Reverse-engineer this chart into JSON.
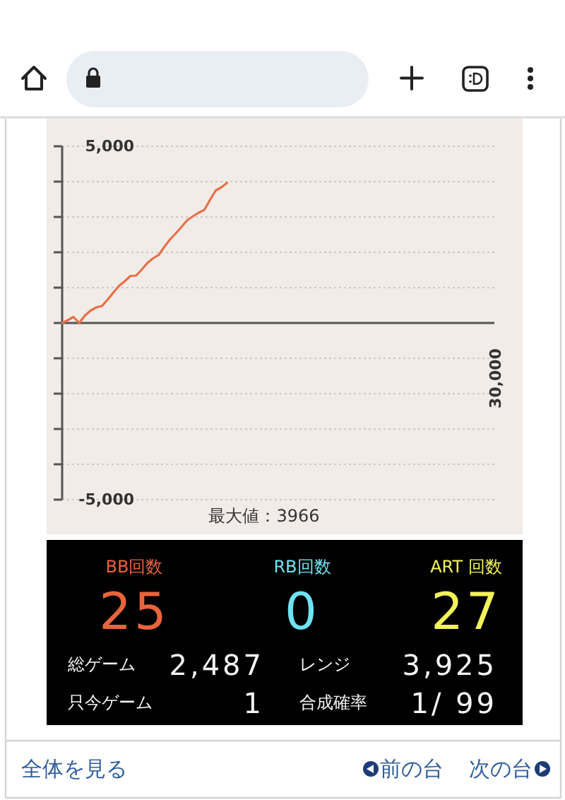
{
  "chart_data": [
    {
      "type": "line",
      "categories": [
        null,
        null,
        null,
        null,
        null,
        null,
        null,
        null,
        null,
        null,
        null,
        null,
        null,
        null,
        null,
        null,
        null,
        null,
        null,
        null,
        null,
        null,
        null,
        null,
        null,
        null,
        null,
        null,
        null,
        null,
        null,
        null,
        null,
        null,
        null,
        null,
        null,
        null,
        null,
        null,
        null,
        null,
        null,
        null,
        null,
        null,
        null,
        null,
        null,
        null,
        null,
        null,
        null,
        null,
        null,
        null,
        null,
        null,
        null,
        null,
        null,
        null,
        null,
        null,
        null,
        null,
        null,
        null,
        null,
        null,
        null,
        null,
        null,
        null,
        null,
        null,
        null
      ],
      "series": [
        {
          "color": "#e8704a",
          "values": [
            0,
            80,
            170,
            0,
            210,
            350,
            440,
            480,
            660,
            860,
            1050,
            1180,
            1330,
            1340,
            1510,
            1700,
            1830,
            1930,
            2160,
            2370,
            2540,
            2720,
            2910,
            3020,
            3120,
            3200,
            3480,
            3750,
            3840,
            3966,
            null,
            null,
            null,
            null,
            null,
            null,
            null,
            null,
            null,
            null,
            null,
            null,
            null,
            null,
            null,
            null,
            null,
            null,
            null,
            null,
            null,
            null,
            null,
            null,
            null,
            null,
            null,
            null,
            null,
            null,
            null,
            null,
            null,
            null,
            null,
            null,
            null,
            null,
            null,
            null,
            null,
            null,
            null,
            null,
            null,
            null,
            null
          ]
        }
      ],
      "ylim": [
        -5000,
        5000
      ],
      "yticks": [
        {
          "value": -5000,
          "label": "-5,000"
        },
        {
          "value": -4000,
          "label": null
        },
        {
          "value": -3000,
          "label": null
        },
        {
          "value": -2000,
          "label": null
        },
        {
          "value": -1000,
          "label": null
        },
        {
          "value": 0,
          "label": null
        },
        {
          "value": 1000,
          "label": null
        },
        {
          "value": 2000,
          "label": null
        },
        {
          "value": 3000,
          "label": null
        },
        {
          "value": 4000,
          "label": null
        },
        {
          "value": 5000,
          "label": "5,000"
        }
      ],
      "grid": "y",
      "annotations": [
        "最大値：3966",
        "30,000"
      ]
    },
    {
      "type": "other",
      "annotations": [
        "BB回数",
        "25",
        "RB回数",
        "0",
        "ART 回数",
        "27",
        "総ゲーム",
        "2,487",
        "レンジ",
        "3,925",
        "只今ゲーム",
        "1",
        "合成確率",
        "1/ 99"
      ]
    },
    {
      "type": "other",
      "annotations": [
        "全体を見る",
        "前の台",
        "次の台"
      ]
    }
  ]
}
